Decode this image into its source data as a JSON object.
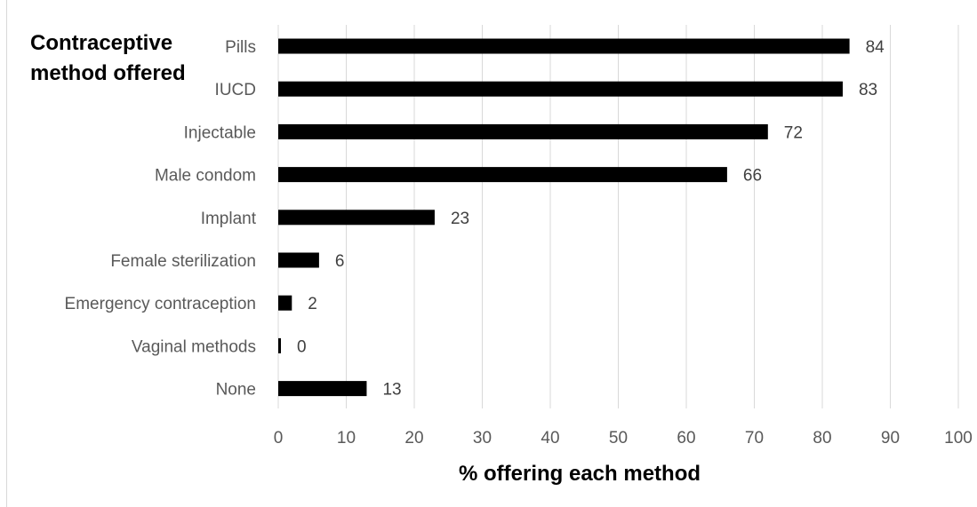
{
  "chart_data": {
    "type": "bar",
    "orientation": "horizontal",
    "categories": [
      "Pills",
      "IUCD",
      "Injectable",
      "Male condom",
      "Implant",
      "Female sterilization",
      "Emergency contraception",
      "Vaginal methods",
      "None"
    ],
    "values": [
      84,
      83,
      72,
      66,
      23,
      6,
      2,
      0,
      13
    ],
    "data_labels": [
      "84",
      "83",
      "72",
      "66",
      "23",
      "6",
      "2",
      "0",
      "13"
    ],
    "ylabel_lines": [
      "Contraceptive",
      "method offered"
    ],
    "xlabel": "% offering each method",
    "xlim": [
      0,
      100
    ],
    "x_ticks": [
      "0",
      "10",
      "20",
      "30",
      "40",
      "50",
      "60",
      "70",
      "80",
      "90",
      "100"
    ],
    "grid": "vertical",
    "bar_color": "#000000",
    "grid_color": "#d9d9d9"
  }
}
